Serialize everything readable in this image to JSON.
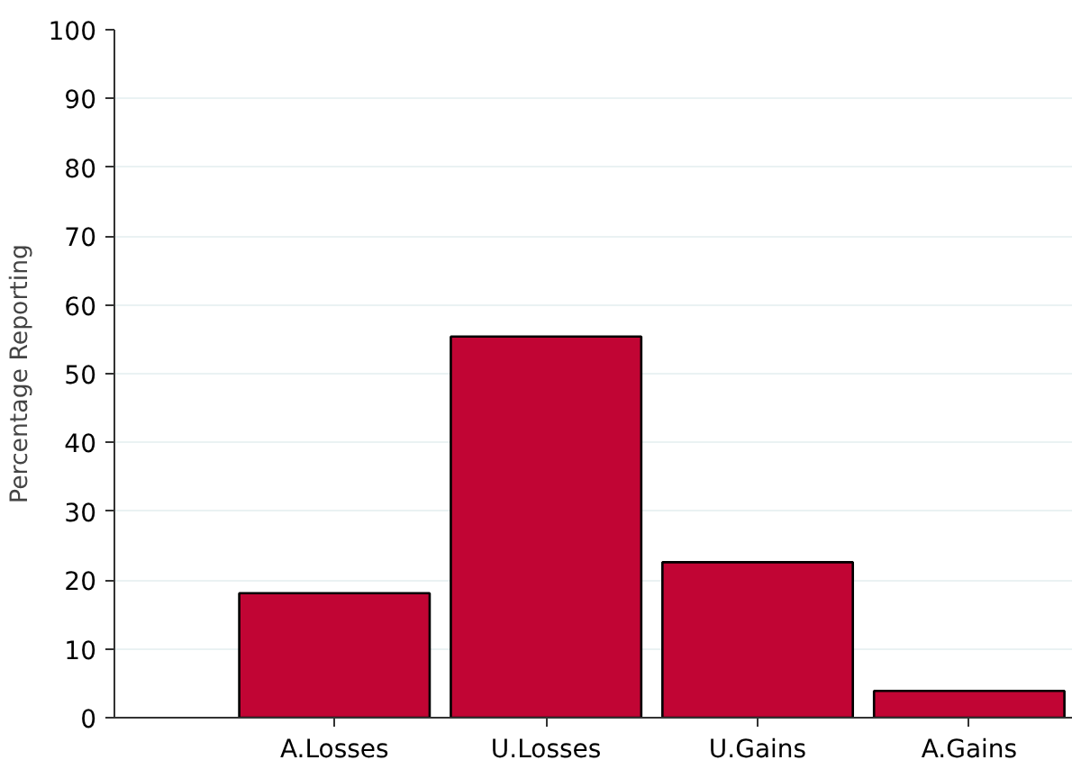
{
  "chart_data": {
    "type": "bar",
    "ylabel": "Percentage Reporting",
    "categories": [
      "A.Losses",
      "U.Losses",
      "U.Gains",
      "A.Gains"
    ],
    "values": [
      18.1,
      55.4,
      22.6,
      3.9
    ],
    "color": "#c10534",
    "ylim": [
      0,
      100
    ],
    "yticks": [
      0,
      10,
      20,
      30,
      40,
      50,
      60,
      70,
      80,
      90,
      100
    ],
    "grid": "y"
  }
}
